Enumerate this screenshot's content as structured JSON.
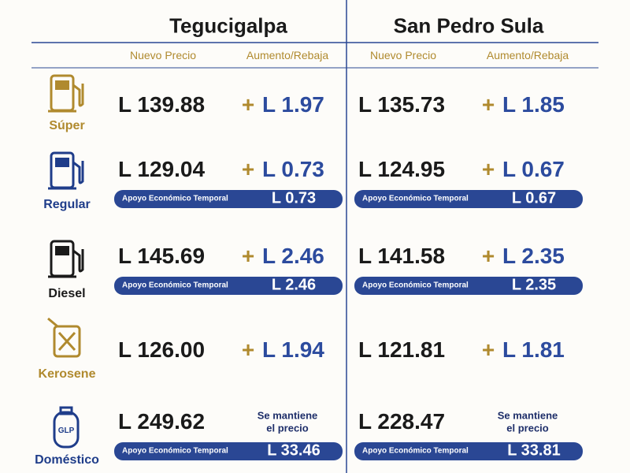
{
  "header": {
    "cities": [
      {
        "name": "Tegucigalpa",
        "price_heading": "Nuevo Precio",
        "change_heading": "Aumento/Rebaja"
      },
      {
        "name": "San Pedro Sula",
        "price_heading": "Nuevo Precio",
        "change_heading": "Aumento/Rebaja"
      }
    ]
  },
  "fuels": [
    {
      "name": "Súper",
      "prices": [
        {
          "price": "L 139.88",
          "sign": "+",
          "change": "L 1.97"
        },
        {
          "price": "L 135.73",
          "sign": "+",
          "change": "L 1.85"
        }
      ]
    },
    {
      "name": "Regular",
      "prices": [
        {
          "price": "L 129.04",
          "sign": "+",
          "change": "L 0.73",
          "support_label": "Apoyo Económico Temporal",
          "support": "L 0.73"
        },
        {
          "price": "L 124.95",
          "sign": "+",
          "change": "L 0.67",
          "support_label": "Apoyo Económico Temporal",
          "support": "L 0.67"
        }
      ]
    },
    {
      "name": "Diesel",
      "prices": [
        {
          "price": "L 145.69",
          "sign": "+",
          "change": "L 2.46",
          "support_label": "Apoyo Económico Temporal",
          "support": "L 2.46"
        },
        {
          "price": "L 141.58",
          "sign": "+",
          "change": "L 2.35",
          "support_label": "Apoyo Económico Temporal",
          "support": "L 2.35"
        }
      ]
    },
    {
      "name": "Kerosene",
      "prices": [
        {
          "price": "L 126.00",
          "sign": "+",
          "change": "L 1.94"
        },
        {
          "price": "L 121.81",
          "sign": "+",
          "change": "L 1.81"
        }
      ]
    },
    {
      "name": "Doméstico",
      "icon_label": "GLP",
      "prices": [
        {
          "price": "L 249.62",
          "note": [
            "Se mantiene",
            "el precio"
          ],
          "support_label": "Apoyo Económico Temporal",
          "support": "L 33.46"
        },
        {
          "price": "L 228.47",
          "note": [
            "Se mantiene",
            "el precio"
          ],
          "support_label": "Apoyo Económico Temporal",
          "support": "L 33.81"
        }
      ]
    }
  ]
}
